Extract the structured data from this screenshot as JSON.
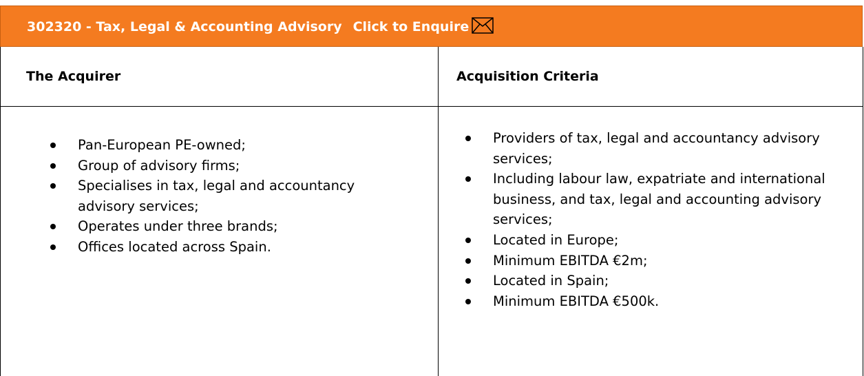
{
  "header": {
    "title": "302320 - Tax, Legal & Accounting Advisory",
    "enquire": "Click to Enquire"
  },
  "table": {
    "columns": [
      {
        "heading": "The Acquirer",
        "items": [
          "Pan-European PE-owned;",
          "Group of advisory firms;",
          "Specialises in tax, legal and accountancy advisory services;",
          "Operates under three brands;",
          "Offices located across Spain."
        ]
      },
      {
        "heading": "Acquisition Criteria",
        "items": [
          "Providers of tax, legal and accountancy advisory services;",
          "Including labour law, expatriate and international business, and tax, legal and accounting advisory services;",
          "Located in Europe;",
          "Minimum EBITDA €2m;",
          "Located in Spain;",
          "Minimum EBITDA €500k."
        ]
      }
    ]
  }
}
